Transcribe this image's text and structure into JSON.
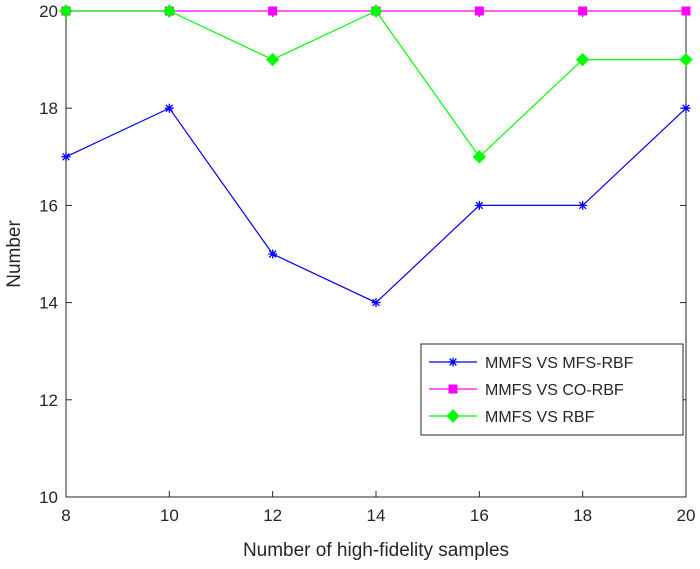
{
  "chart_data": {
    "type": "line",
    "title": "",
    "xlabel": "Number of high-fidelity samples",
    "ylabel": "Number",
    "xlim": [
      8,
      20
    ],
    "ylim": [
      10,
      20
    ],
    "x_ticks": [
      "8",
      "10",
      "12",
      "14",
      "16",
      "18",
      "20"
    ],
    "y_ticks": [
      "10",
      "12",
      "14",
      "16",
      "18",
      "20"
    ],
    "grid": false,
    "legend_position": "lower-right",
    "x": [
      8,
      10,
      12,
      14,
      16,
      18,
      20
    ],
    "series": [
      {
        "name": "MMFS VS MFS-RBF",
        "values": [
          17,
          18,
          15,
          14,
          16,
          16,
          18
        ],
        "color": "#0000ff",
        "marker": "asterisk"
      },
      {
        "name": "MMFS VS CO-RBF",
        "values": [
          20,
          20,
          20,
          20,
          20,
          20,
          20
        ],
        "color": "#ff00ff",
        "marker": "square"
      },
      {
        "name": "MMFS VS RBF",
        "values": [
          20,
          20,
          19,
          20,
          17,
          19,
          19
        ],
        "color": "#00ff00",
        "marker": "diamond"
      }
    ]
  }
}
